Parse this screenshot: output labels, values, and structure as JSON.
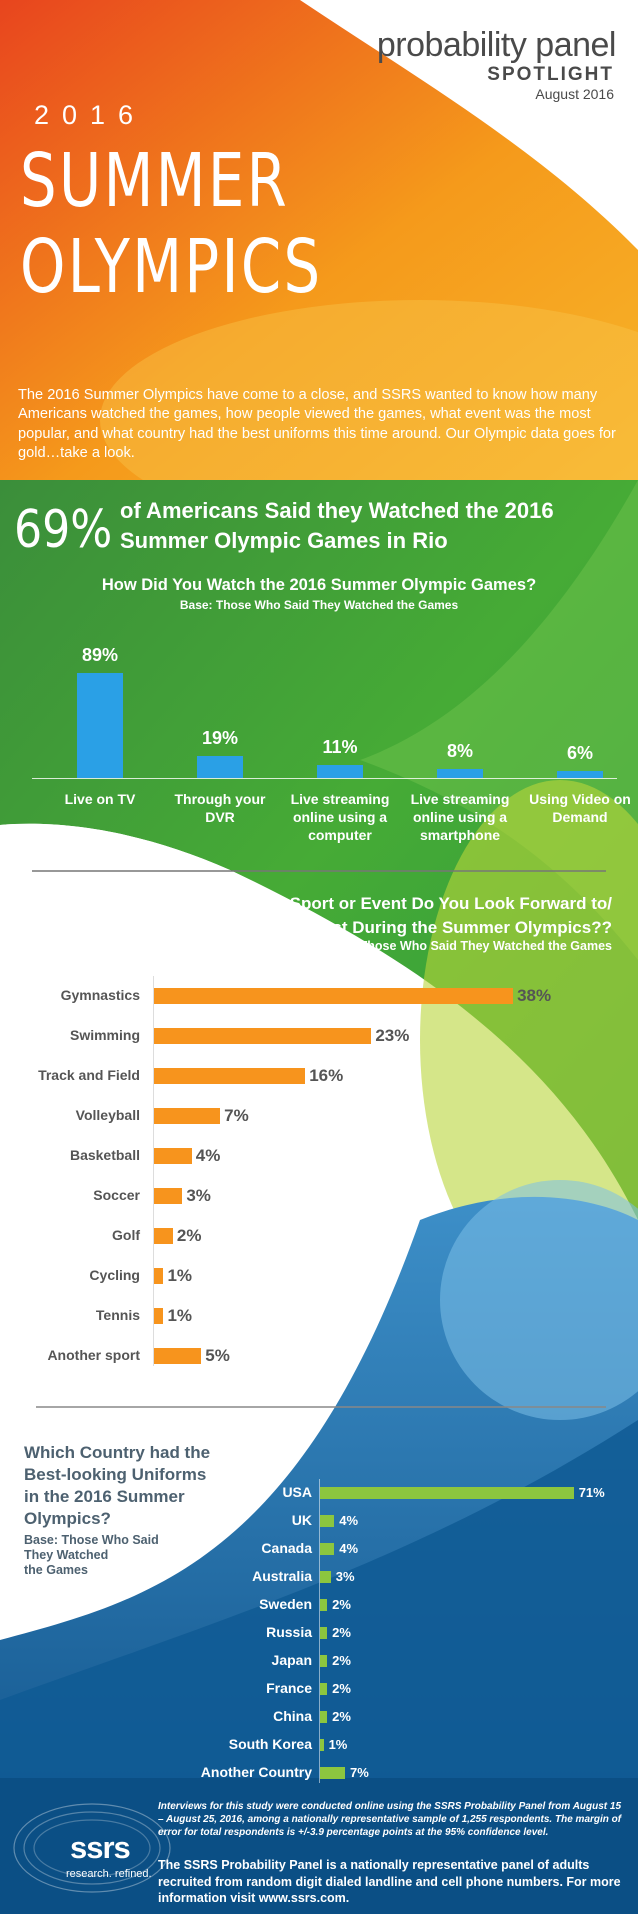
{
  "brand": {
    "name": "probability panel",
    "spotlight": "SPOTLIGHT",
    "date": "August 2016"
  },
  "hero": {
    "year": "2016",
    "title_line1": "SUMMER",
    "title_line2": "OLYMPICS"
  },
  "intro": "The 2016 Summer Olympics have come to a close, and SSRS wanted to know how many Americans watched the games, how people viewed the games, what event was the most popular, and what country had the best uniforms this time around.  Our Olympic data goes for gold…take a look.",
  "headline_stat": {
    "value": "69%",
    "text": "of Americans Said they Watched the 2016 Summer Olympic Games in Rio"
  },
  "footer": {
    "methodology": "Interviews for this study were conducted online using the SSRS Probability Panel from August 15 – August 25, 2016, among a nationally representative sample of 1,255 respondents.  The margin of error for total respondents is +/-3.9 percentage points at the 95% confidence level.",
    "about": "The SSRS Probability Panel is a nationally representative panel of adults recruited from random digit dialed landline and cell phone numbers.  For more information visit www.ssrs.com.",
    "logo_text": "ssrs",
    "logo_tagline": "research. refined."
  },
  "colors": {
    "orange": "#f39a1f",
    "green": "#3aa832",
    "teal_blue": "#1e72ad",
    "bar_blue": "#2aa0e6",
    "bar_orange": "#f7941d",
    "bar_green": "#8cc63f"
  },
  "chart_data": [
    {
      "type": "bar",
      "orientation": "vertical",
      "title": "How Did You Watch the 2016 Summer Olympic Games?",
      "subtitle": "Base: Those Who Said They Watched the Games",
      "categories": [
        "Live on TV",
        "Through your DVR",
        "Live streaming online using a computer",
        "Live streaming online using a smartphone",
        "Using Video on Demand"
      ],
      "category_lines": [
        [
          "Live on TV"
        ],
        [
          "Through your",
          "DVR"
        ],
        [
          "Live streaming",
          "online using a",
          "computer"
        ],
        [
          "Live streaming",
          "online using a",
          "smartphone"
        ],
        [
          "Using Video on",
          "Demand"
        ]
      ],
      "values": [
        89,
        19,
        11,
        8,
        6
      ],
      "value_labels": [
        "89%",
        "19%",
        "11%",
        "8%",
        "6%"
      ],
      "ylim": [
        0,
        100
      ]
    },
    {
      "type": "bar",
      "orientation": "horizontal",
      "title_lines": [
        "What Sport or Event Do You Look Forward to/",
        "Enjoy the Most During the Summer Olympics??"
      ],
      "subtitle": "Base:  Those Who Said They Watched the Games",
      "categories": [
        "Gymnastics",
        "Swimming",
        "Track and Field",
        "Volleyball",
        "Basketball",
        "Soccer",
        "Golf",
        "Cycling",
        "Tennis",
        "Another sport"
      ],
      "values": [
        38,
        23,
        16,
        7,
        4,
        3,
        2,
        1,
        1,
        5
      ],
      "value_labels": [
        "38%",
        "23%",
        "16%",
        "7%",
        "4%",
        "3%",
        "2%",
        "1%",
        "1%",
        "5%"
      ],
      "xlim": [
        0,
        40
      ]
    },
    {
      "type": "bar",
      "orientation": "horizontal",
      "title_lines": [
        "Which Country had the",
        "Best-looking Uniforms",
        "in the 2016 Summer",
        "Olympics?"
      ],
      "subtitle_lines": [
        "Base:  Those Who Said",
        "They Watched",
        "the Games"
      ],
      "categories": [
        "USA",
        "UK",
        "Canada",
        "Australia",
        "Sweden",
        "Russia",
        "Japan",
        "France",
        "China",
        "South Korea",
        "Another Country"
      ],
      "values": [
        71,
        4,
        4,
        3,
        2,
        2,
        2,
        2,
        2,
        1,
        7
      ],
      "value_labels": [
        "71%",
        "4%",
        "4%",
        "3%",
        "2%",
        "2%",
        "2%",
        "2%",
        "2%",
        "1%",
        "7%"
      ],
      "xlim": [
        0,
        75
      ]
    }
  ]
}
